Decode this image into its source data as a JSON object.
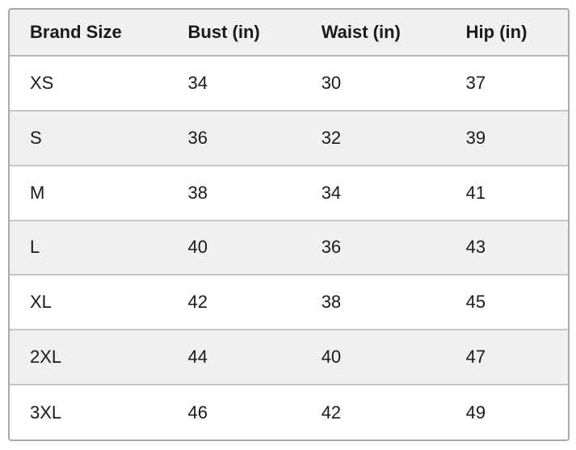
{
  "chart_data": {
    "type": "table",
    "columns": [
      "Brand Size",
      "Bust (in)",
      "Waist (in)",
      "Hip (in)"
    ],
    "rows": [
      [
        "XS",
        "34",
        "30",
        "37"
      ],
      [
        "S",
        "36",
        "32",
        "39"
      ],
      [
        "M",
        "38",
        "34",
        "41"
      ],
      [
        "L",
        "40",
        "36",
        "43"
      ],
      [
        "XL",
        "42",
        "38",
        "45"
      ],
      [
        "2XL",
        "44",
        "40",
        "47"
      ],
      [
        "3XL",
        "46",
        "42",
        "49"
      ]
    ],
    "layout": {
      "header_position": "top",
      "zebra_striping": true,
      "striped_rows": [
        "header",
        "S",
        "L",
        "2XL"
      ],
      "text_align": "left"
    },
    "colors": {
      "stripe_bg": "#f0f0f1",
      "row_bg": "#ffffff",
      "outer_border": "#a9a9a9",
      "row_separator": "#c6c6c6",
      "header_separator": "#b7b7b7",
      "text": "#1a1a1a"
    }
  }
}
